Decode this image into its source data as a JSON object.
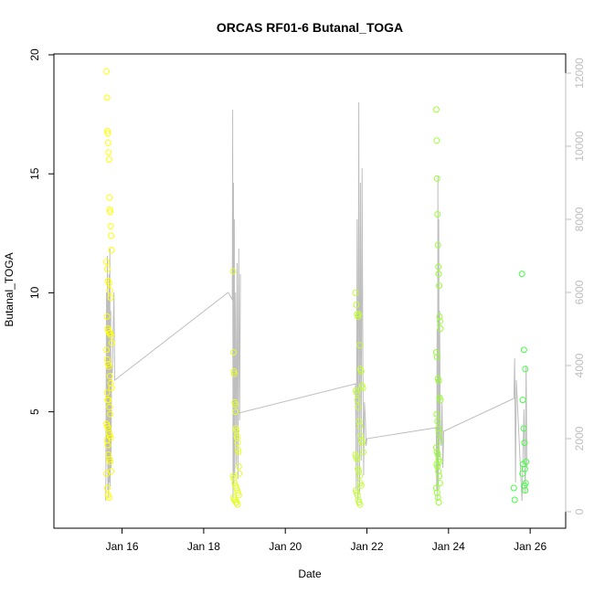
{
  "chart_data": {
    "type": "scatter",
    "title": "ORCAS RF01-6 Butanal_TOGA",
    "xlabel": "Date",
    "ylabel": "Butanal_TOGA",
    "x_ticks": [
      {
        "label": "Jan 16",
        "day": 16
      },
      {
        "label": "Jan 18",
        "day": 18
      },
      {
        "label": "Jan 20",
        "day": 20
      },
      {
        "label": "Jan 22",
        "day": 22
      },
      {
        "label": "Jan 24",
        "day": 24
      },
      {
        "label": "Jan 26",
        "day": 26
      }
    ],
    "xlim": [
      14.8,
      26.4
    ],
    "ylim": [
      0.8,
      20
    ],
    "y_ticks": [
      5,
      10,
      15,
      20
    ],
    "y2lim": [
      0,
      12500
    ],
    "y2_ticks": [
      0,
      2000,
      4000,
      6000,
      8000,
      10000,
      12000
    ],
    "colors": {
      "flight_1": "#ffff00",
      "flight_2": "#e3ff2a",
      "flight_3": "#c2ff35",
      "flight_4": "#99ff33",
      "flight_5": "#44ff44",
      "altitude_line": "#bebebe",
      "axis": "#000000",
      "right_axis": "#bebebe"
    },
    "series": [
      {
        "color_key": "flight_1",
        "x": [
          15.62,
          15.63,
          15.64,
          15.65,
          15.66,
          15.67,
          15.68,
          15.69,
          15.7,
          15.71,
          15.72,
          15.73,
          15.74,
          15.62,
          15.64,
          15.66,
          15.68,
          15.7,
          15.72,
          15.63,
          15.65,
          15.67,
          15.69,
          15.71,
          15.73,
          15.75,
          15.62,
          15.64,
          15.66,
          15.68,
          15.7,
          15.72,
          15.74,
          15.63,
          15.65,
          15.67,
          15.69,
          15.71,
          15.62,
          15.64,
          15.66,
          15.68,
          15.7,
          15.72,
          15.63,
          15.65,
          15.67,
          15.69,
          15.71,
          15.73,
          15.62,
          15.64,
          15.66,
          15.68
        ],
        "y": [
          19.3,
          18.2,
          16.8,
          16.7,
          16.3,
          15.9,
          15.6,
          14.0,
          13.5,
          13.4,
          12.8,
          12.4,
          11.8,
          11.3,
          11.0,
          10.5,
          10.4,
          10.1,
          9.8,
          9.0,
          8.5,
          8.4,
          8.3,
          8.3,
          8.2,
          7.9,
          7.6,
          7.2,
          7.0,
          6.9,
          6.5,
          6.2,
          6.0,
          5.8,
          5.5,
          5.5,
          5.2,
          4.9,
          4.5,
          4.4,
          4.3,
          4.1,
          4.0,
          3.9,
          3.8,
          3.6,
          3.2,
          3.0,
          2.9,
          2.5,
          2.4,
          1.8,
          1.5,
          1.4
        ]
      },
      {
        "color_key": "flight_2",
        "x": [
          18.72,
          18.73,
          18.74,
          18.75,
          18.76,
          18.77,
          18.78,
          18.79,
          18.8,
          18.81,
          18.82,
          18.83,
          18.84,
          18.85,
          18.86,
          18.87,
          18.72,
          18.74,
          18.76,
          18.78,
          18.8,
          18.82,
          18.84,
          18.86,
          18.73,
          18.75,
          18.77,
          18.79,
          18.81,
          18.83
        ],
        "y": [
          10.9,
          7.5,
          6.7,
          6.6,
          5.4,
          5.3,
          5.0,
          4.3,
          4.2,
          4.0,
          3.9,
          3.7,
          3.4,
          3.3,
          2.7,
          2.4,
          2.3,
          2.2,
          2.0,
          1.9,
          1.8,
          1.7,
          1.6,
          1.5,
          1.4,
          1.3,
          1.3,
          1.2,
          1.2,
          1.1
        ]
      },
      {
        "color_key": "flight_3",
        "x": [
          21.72,
          21.74,
          21.76,
          21.78,
          21.8,
          21.82,
          21.84,
          21.86,
          21.88,
          21.9,
          21.73,
          21.75,
          21.77,
          21.79,
          21.81,
          21.83,
          21.85,
          21.87,
          21.89,
          21.91,
          21.72,
          21.74,
          21.76,
          21.78,
          21.8,
          21.82,
          21.84,
          21.86,
          21.73,
          21.75,
          21.77,
          21.79,
          21.81,
          21.83
        ],
        "y": [
          10.0,
          9.5,
          9.1,
          9.0,
          9.1,
          7.8,
          6.8,
          6.7,
          6.1,
          6.0,
          5.9,
          5.8,
          5.5,
          5.2,
          4.6,
          4.4,
          4.0,
          3.8,
          3.7,
          3.3,
          3.2,
          3.1,
          3.0,
          2.6,
          2.5,
          2.3,
          2.0,
          1.9,
          1.7,
          1.6,
          1.5,
          1.3,
          1.2,
          1.1
        ]
      },
      {
        "color_key": "flight_4",
        "x": [
          23.7,
          23.71,
          23.72,
          23.73,
          23.74,
          23.75,
          23.76,
          23.77,
          23.78,
          23.79,
          23.8,
          23.7,
          23.72,
          23.74,
          23.76,
          23.78,
          23.8,
          23.71,
          23.73,
          23.75,
          23.77,
          23.79,
          23.7,
          23.72,
          23.74,
          23.76,
          23.78,
          23.71,
          23.73,
          23.75,
          23.77,
          23.79,
          23.7,
          23.72,
          23.74,
          23.76
        ],
        "y": [
          17.7,
          16.4,
          14.8,
          13.3,
          12.0,
          11.1,
          10.8,
          10.3,
          9.0,
          8.8,
          8.5,
          7.5,
          7.3,
          6.4,
          6.3,
          5.6,
          5.5,
          4.9,
          4.6,
          4.3,
          4.1,
          3.8,
          3.5,
          3.3,
          3.2,
          3.0,
          2.9,
          2.8,
          2.7,
          2.5,
          2.3,
          2.0,
          1.8,
          1.6,
          1.4,
          1.2
        ]
      },
      {
        "color_key": "flight_5",
        "x": [
          25.8,
          25.85,
          25.88,
          25.82,
          25.84,
          25.86,
          25.9,
          25.83,
          25.87,
          25.81,
          25.89,
          25.86,
          25.88,
          25.6,
          25.62
        ],
        "y": [
          10.8,
          7.6,
          6.8,
          5.5,
          4.3,
          3.7,
          2.9,
          2.8,
          2.6,
          2.4,
          2.0,
          1.9,
          1.7,
          1.8,
          1.3
        ]
      }
    ],
    "altitude_line": {
      "x": [
        15.6,
        15.62,
        15.63,
        15.64,
        15.65,
        15.66,
        15.67,
        15.68,
        15.69,
        15.7,
        15.71,
        15.72,
        15.73,
        15.74,
        15.76,
        15.8,
        15.82,
        18.6,
        18.7,
        18.71,
        18.72,
        18.73,
        18.74,
        18.75,
        18.76,
        18.78,
        18.8,
        18.82,
        18.84,
        18.86,
        18.88,
        18.9,
        18.88,
        18.86,
        21.72,
        21.74,
        21.76,
        21.78,
        21.8,
        21.82,
        21.84,
        21.86,
        21.88,
        21.9,
        21.92,
        21.94,
        21.96,
        21.98,
        22.0,
        23.7,
        23.71,
        23.72,
        23.73,
        23.74,
        23.75,
        23.76,
        23.77,
        23.78,
        23.8,
        23.82,
        23.84,
        23.86,
        23.88,
        25.6,
        25.62,
        25.64,
        25.66,
        25.8,
        25.85,
        25.88,
        25.9,
        25.92
      ],
      "y": [
        300,
        6000,
        1500,
        7000,
        600,
        5800,
        400,
        6500,
        800,
        7200,
        700,
        5500,
        1200,
        4000,
        3800,
        6000,
        3600,
        6000,
        5800,
        11000,
        400,
        9000,
        700,
        8000,
        1000,
        6000,
        1200,
        6800,
        900,
        7200,
        2500,
        6500,
        2800,
        2700,
        3500,
        600,
        8000,
        300,
        11200,
        500,
        9000,
        1400,
        9400,
        4000,
        1000,
        3000,
        2600,
        1800,
        2000,
        2300,
        600,
        5000,
        300,
        9200,
        700,
        8000,
        1500,
        5500,
        2000,
        1800,
        3000,
        1200,
        2200,
        3100,
        4200,
        800,
        3600,
        300,
        2800,
        500,
        4000,
        1200
      ]
    }
  }
}
